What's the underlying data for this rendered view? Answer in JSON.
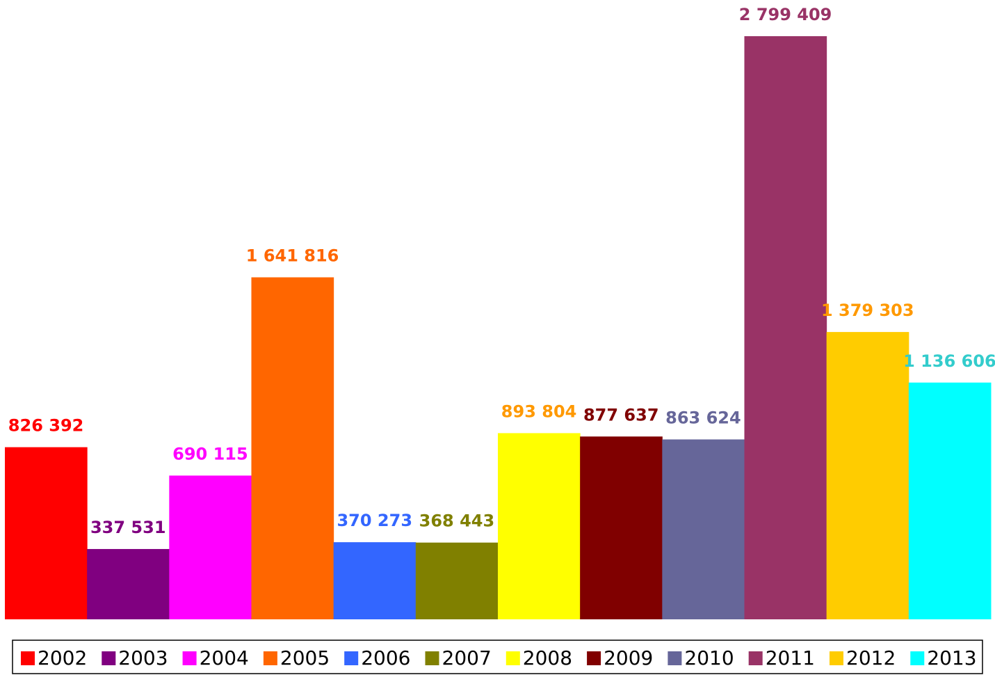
{
  "chart_data": {
    "type": "bar",
    "series": [
      {
        "name": "2002",
        "color": "#ff0000",
        "label_color": "#ff0000",
        "values": [
          826392
        ],
        "value_labels": [
          "826 392"
        ]
      },
      {
        "name": "2003",
        "color": "#800080",
        "label_color": "#800080",
        "values": [
          337531
        ],
        "value_labels": [
          "337 531"
        ]
      },
      {
        "name": "2004",
        "color": "#ff00ff",
        "label_color": "#ff00ff",
        "values": [
          690115
        ],
        "value_labels": [
          "690 115"
        ]
      },
      {
        "name": "2005",
        "color": "#ff6600",
        "label_color": "#ff6600",
        "values": [
          1641816
        ],
        "value_labels": [
          "1 641 816"
        ]
      },
      {
        "name": "2006",
        "color": "#3366ff",
        "label_color": "#3366ff",
        "values": [
          370273
        ],
        "value_labels": [
          "370 273"
        ]
      },
      {
        "name": "2007",
        "color": "#808000",
        "label_color": "#808000",
        "values": [
          368443
        ],
        "value_labels": [
          "368 443"
        ]
      },
      {
        "name": "2008",
        "color": "#ffff00",
        "label_color": "#ff9900",
        "values": [
          893804
        ],
        "value_labels": [
          "893 804"
        ]
      },
      {
        "name": "2009",
        "color": "#800000",
        "label_color": "#800000",
        "values": [
          877637
        ],
        "value_labels": [
          "877 637"
        ]
      },
      {
        "name": "2010",
        "color": "#666699",
        "label_color": "#666699",
        "values": [
          863624
        ],
        "value_labels": [
          "863 624"
        ]
      },
      {
        "name": "2011",
        "color": "#993366",
        "label_color": "#993366",
        "values": [
          2799409
        ],
        "value_labels": [
          "2 799 409"
        ]
      },
      {
        "name": "2012",
        "color": "#ffcc00",
        "label_color": "#ff9900",
        "values": [
          1379303
        ],
        "value_labels": [
          "1 379 303"
        ]
      },
      {
        "name": "2013",
        "color": "#00ffff",
        "label_color": "#33cccc",
        "values": [
          1136606
        ],
        "value_labels": [
          "1 136 606"
        ]
      }
    ],
    "legend": "bottom"
  }
}
